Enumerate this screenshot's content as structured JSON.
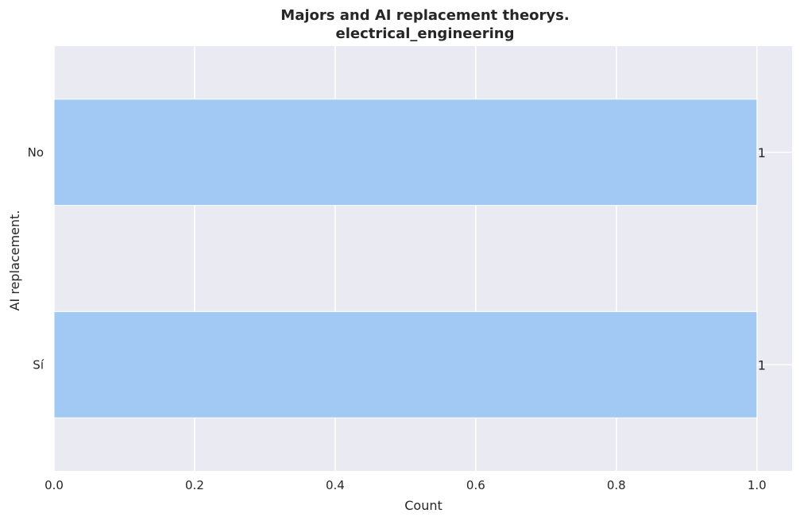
{
  "chart_data": {
    "type": "bar",
    "orientation": "horizontal",
    "title": "Majors and AI replacement theorys.",
    "subtitle": "electrical_engineering",
    "xlabel": "Count",
    "ylabel": "AI replacement.",
    "categories": [
      "No",
      "Sí"
    ],
    "values": [
      1,
      1
    ],
    "data_labels": [
      "1",
      "1"
    ],
    "xlim": [
      0,
      1.05
    ],
    "xticks": [
      0.0,
      0.2,
      0.4,
      0.6,
      0.8,
      1.0
    ],
    "xtick_labels": [
      "0.0",
      "0.2",
      "0.4",
      "0.6",
      "0.8",
      "1.0"
    ],
    "grid": true,
    "colors": {
      "bar": "#a1c9f4",
      "plot_background": "#eaeaf2",
      "grid": "#ffffff",
      "text": "#262626"
    }
  }
}
